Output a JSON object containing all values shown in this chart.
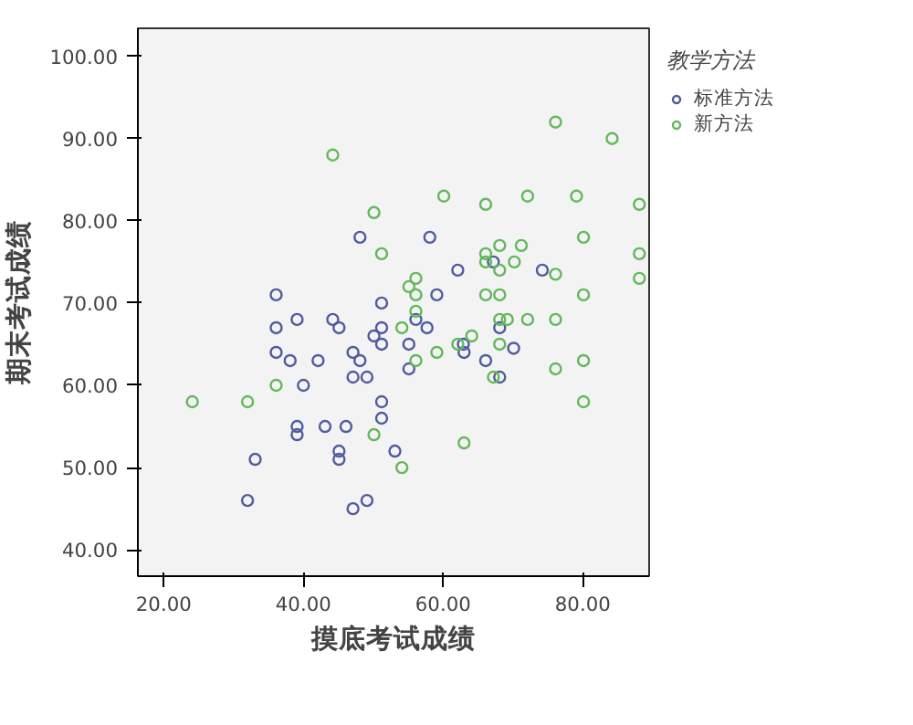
{
  "chart_data": {
    "type": "scatter",
    "xlabel": "摸底考试成绩",
    "ylabel": "期末考试成绩",
    "legend_title": "教学方法",
    "legend": "top right",
    "marker": "circle",
    "grid": false,
    "xlim": [
      16.3,
      89.5
    ],
    "ylim": [
      36.8,
      103.4
    ],
    "xticks": [
      {
        "value": 20,
        "label": "20.00"
      },
      {
        "value": 40,
        "label": "40.00"
      },
      {
        "value": 60,
        "label": "60.00"
      },
      {
        "value": 80,
        "label": "80.00"
      }
    ],
    "yticks": [
      {
        "value": 40,
        "label": "40.00"
      },
      {
        "value": 50,
        "label": "50.00"
      },
      {
        "value": 60,
        "label": "60.00"
      },
      {
        "value": 70,
        "label": "70.00"
      },
      {
        "value": 80,
        "label": "80.00"
      },
      {
        "value": 90,
        "label": "90.00"
      },
      {
        "value": 100,
        "label": "100.00"
      }
    ],
    "series": [
      {
        "name": "标准方法",
        "color": "#4f5c9e",
        "x": [
          48.1,
          58.1,
          62.1,
          74.2,
          67.2,
          36.1,
          59.1,
          51.2,
          39.1,
          44.2,
          56.1,
          36.1,
          45.1,
          51.2,
          57.7,
          68.1,
          50.1,
          51.2,
          55.1,
          62.9,
          70.1,
          36.1,
          47.1,
          63,
          38.1,
          42.1,
          48.1,
          66.1,
          55.1,
          47.1,
          49.1,
          68.1,
          40,
          51.2,
          51.2,
          39.1,
          43.1,
          46.1,
          39.1,
          45.1,
          53.1,
          33.1,
          45.1,
          32,
          49.1,
          47.1
        ],
        "values": [
          78,
          78,
          74,
          74,
          75,
          71,
          71,
          70,
          68,
          68,
          68,
          67,
          67,
          67,
          67,
          67,
          66,
          65,
          65,
          65,
          64.5,
          64,
          64,
          64,
          63,
          63,
          63,
          63,
          62,
          61,
          61,
          61,
          60,
          58,
          56,
          55,
          55,
          55,
          54,
          52,
          52,
          51,
          51,
          46,
          46,
          45
        ]
      },
      {
        "name": "新方法",
        "color": "#62b85a",
        "x": [
          44.2,
          76.1,
          84.2,
          60.1,
          72.1,
          79.1,
          66.1,
          88.1,
          50.1,
          51.2,
          80.1,
          88.1,
          66.1,
          68.1,
          71.2,
          70.2,
          68.1,
          66.1,
          76.1,
          88.1,
          56.1,
          55.1,
          56.1,
          66.1,
          68.1,
          80.1,
          56.1,
          68.1,
          69.2,
          72.1,
          76.1,
          54.1,
          64.1,
          62.1,
          68.1,
          59.1,
          56.1,
          80.1,
          76.1,
          67.2,
          36.1,
          24.1,
          32,
          80.1,
          50.1,
          63,
          54.1
        ],
        "values": [
          88,
          92,
          90,
          83,
          83,
          83,
          82,
          82,
          81,
          76,
          78,
          76,
          76,
          77,
          77,
          75,
          74,
          75,
          73.5,
          73,
          73,
          72,
          71,
          71,
          71,
          71,
          69,
          68,
          68,
          68,
          68,
          67,
          66,
          65,
          65,
          64,
          63,
          63,
          62,
          61,
          60,
          58,
          58,
          58,
          54,
          53,
          50
        ]
      }
    ]
  }
}
